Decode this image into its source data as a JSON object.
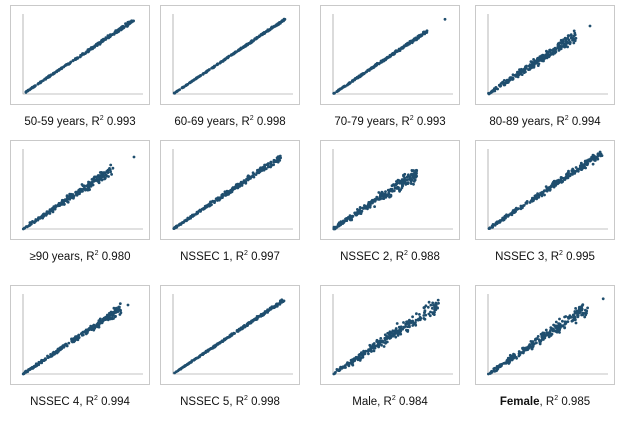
{
  "figure": {
    "marker_color": "#1f4e6e"
  },
  "chart_data": [
    {
      "type": "scatter",
      "caption": "50-59 years, R² 0.993",
      "label": "50-59 years",
      "r2": "0.993",
      "r2_value": 0.993,
      "xlim": [
        0,
        600
      ],
      "ylim": [
        0,
        600
      ],
      "max_x": 560,
      "spread": 0.015,
      "outliers": []
    },
    {
      "type": "scatter",
      "caption": "60-69 years, R² 0.998",
      "label": "60-69 years",
      "r2": "0.998",
      "r2_value": 0.998,
      "xlim": [
        0,
        600
      ],
      "ylim": [
        0,
        600
      ],
      "max_x": 560,
      "spread": 0.01,
      "outliers": [
        [
          530,
          525
        ]
      ]
    },
    {
      "type": "scatter",
      "caption": "70-79 years, R² 0.993",
      "label": "70-79 years",
      "r2": "0.993",
      "r2_value": 0.993,
      "xlim": [
        0,
        600
      ],
      "ylim": [
        0,
        600
      ],
      "max_x": 470,
      "spread": 0.015,
      "outliers": [
        [
          560,
          560
        ]
      ]
    },
    {
      "type": "scatter",
      "caption": "80-89 years, R² 0.994",
      "label": "80-89 years",
      "r2": "0.994",
      "r2_value": 0.994,
      "xlim": [
        0,
        600
      ],
      "ylim": [
        0,
        600
      ],
      "max_x": 440,
      "spread": 0.06,
      "outliers": [
        [
          510,
          510
        ]
      ]
    },
    {
      "type": "scatter",
      "caption": "≥90 years, R² 0.980",
      "label": "≥90 years",
      "r2": "0.980",
      "r2_value": 0.98,
      "xlim": [
        0,
        400
      ],
      "ylim": [
        0,
        400
      ],
      "max_x": 300,
      "spread": 0.05,
      "outliers": [
        [
          370,
          360
        ]
      ]
    },
    {
      "type": "scatter",
      "caption": "NSSEC 1, R² 0.997",
      "label": "NSSEC 1",
      "r2": "0.997",
      "r2_value": 0.997,
      "xlim": [
        0,
        400
      ],
      "ylim": [
        0,
        400
      ],
      "max_x": 360,
      "spread": 0.03,
      "outliers": []
    },
    {
      "type": "scatter",
      "caption": "NSSEC 2, R² 0.988",
      "label": "NSSEC 2",
      "r2": "0.988",
      "r2_value": 0.988,
      "xlim": [
        0,
        400
      ],
      "ylim": [
        0,
        400
      ],
      "max_x": 280,
      "spread": 0.07,
      "outliers": []
    },
    {
      "type": "scatter",
      "caption": "NSSEC 3, R² 0.995",
      "label": "NSSEC 3",
      "r2": "0.995",
      "r2_value": 0.995,
      "xlim": [
        0,
        400
      ],
      "ylim": [
        0,
        400
      ],
      "max_x": 380,
      "spread": 0.04,
      "outliers": []
    },
    {
      "type": "scatter",
      "caption": "NSSEC 4, R² 0.994",
      "label": "NSSEC 4",
      "r2": "0.994",
      "r2_value": 0.994,
      "xlim": [
        0,
        400
      ],
      "ylim": [
        0,
        400
      ],
      "max_x": 330,
      "spread": 0.04,
      "outliers": [
        [
          350,
          345
        ]
      ]
    },
    {
      "type": "scatter",
      "caption": "NSSEC 5, R² 0.998",
      "label": "NSSEC 5",
      "r2": "0.998",
      "r2_value": 0.998,
      "xlim": [
        0,
        400
      ],
      "ylim": [
        0,
        400
      ],
      "max_x": 370,
      "spread": 0.015,
      "outliers": []
    },
    {
      "type": "scatter",
      "caption": "Male, R² 0.984",
      "label": "Male",
      "r2": "0.984",
      "r2_value": 0.984,
      "xlim": [
        0,
        1000
      ],
      "ylim": [
        0,
        1000
      ],
      "max_x": 880,
      "spread": 0.08,
      "outliers": []
    },
    {
      "type": "scatter",
      "caption": "Female, R² 0.985",
      "label": "Female",
      "r2": "0.985",
      "r2_value": 0.985,
      "xlim": [
        0,
        1000
      ],
      "ylim": [
        0,
        1000
      ],
      "max_x": 830,
      "spread": 0.07,
      "outliers": [
        [
          960,
          940
        ]
      ]
    }
  ]
}
